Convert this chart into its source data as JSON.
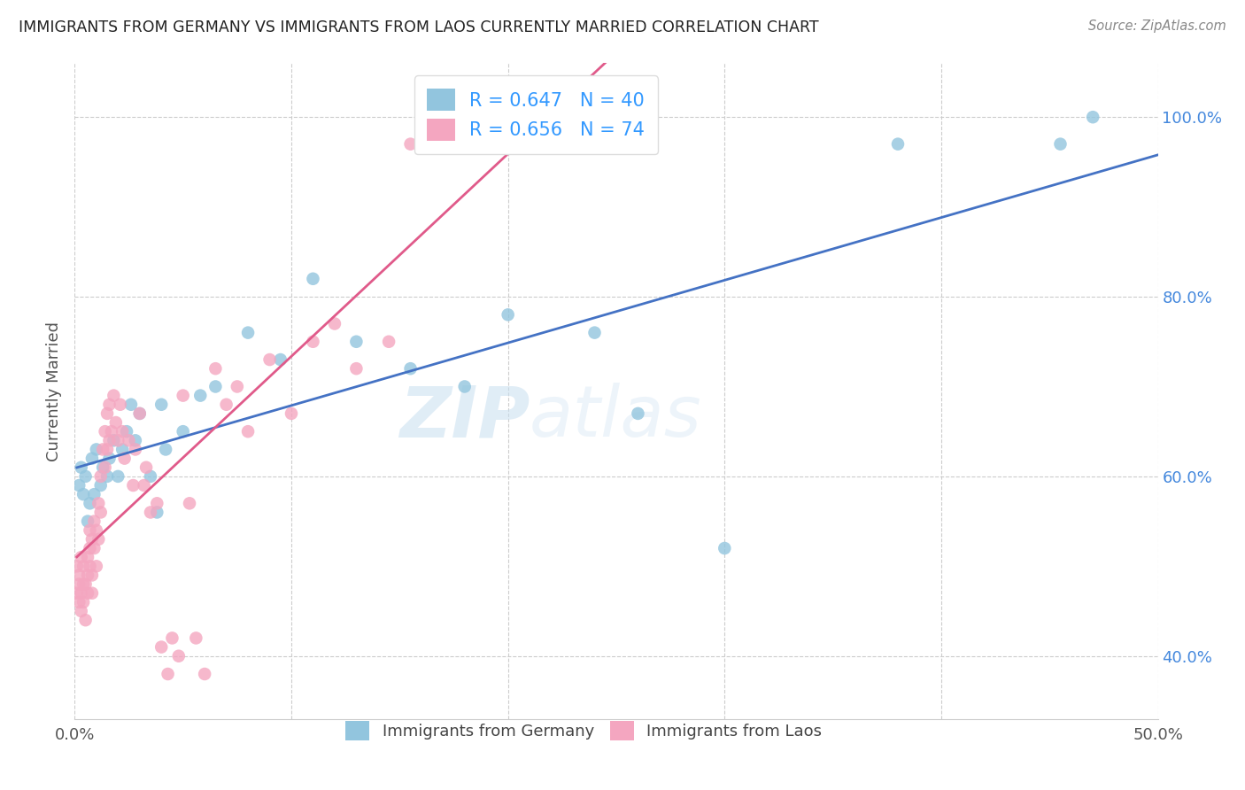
{
  "title": "IMMIGRANTS FROM GERMANY VS IMMIGRANTS FROM LAOS CURRENTLY MARRIED CORRELATION CHART",
  "source": "Source: ZipAtlas.com",
  "ylabel": "Currently Married",
  "xlim": [
    0.0,
    0.5
  ],
  "ylim": [
    0.33,
    1.06
  ],
  "xtick_positions": [
    0.0,
    0.1,
    0.2,
    0.3,
    0.4,
    0.5
  ],
  "xticklabels": [
    "0.0%",
    "",
    "",
    "",
    "",
    "50.0%"
  ],
  "ytick_positions": [
    0.4,
    0.6,
    0.8,
    1.0
  ],
  "ytick_labels": [
    "40.0%",
    "60.0%",
    "80.0%",
    "100.0%"
  ],
  "germany_R": 0.647,
  "germany_N": 40,
  "laos_R": 0.656,
  "laos_N": 74,
  "germany_color": "#92c5de",
  "laos_color": "#f4a6c0",
  "germany_line_color": "#4472c4",
  "laos_line_color": "#e05a8a",
  "watermark_zip": "ZIP",
  "watermark_atlas": "atlas",
  "germany_x": [
    0.002,
    0.003,
    0.004,
    0.005,
    0.006,
    0.007,
    0.008,
    0.009,
    0.01,
    0.012,
    0.013,
    0.015,
    0.016,
    0.018,
    0.02,
    0.022,
    0.024,
    0.026,
    0.028,
    0.03,
    0.035,
    0.038,
    0.04,
    0.042,
    0.05,
    0.058,
    0.065,
    0.08,
    0.095,
    0.11,
    0.13,
    0.155,
    0.18,
    0.2,
    0.24,
    0.26,
    0.3,
    0.38,
    0.455,
    0.47
  ],
  "germany_y": [
    0.59,
    0.61,
    0.58,
    0.6,
    0.55,
    0.57,
    0.62,
    0.58,
    0.63,
    0.59,
    0.61,
    0.6,
    0.62,
    0.64,
    0.6,
    0.63,
    0.65,
    0.68,
    0.64,
    0.67,
    0.6,
    0.56,
    0.68,
    0.63,
    0.65,
    0.69,
    0.7,
    0.76,
    0.73,
    0.82,
    0.75,
    0.72,
    0.7,
    0.78,
    0.76,
    0.67,
    0.52,
    0.97,
    0.97,
    1.0
  ],
  "laos_x": [
    0.001,
    0.001,
    0.002,
    0.002,
    0.002,
    0.003,
    0.003,
    0.003,
    0.004,
    0.004,
    0.004,
    0.005,
    0.005,
    0.006,
    0.006,
    0.006,
    0.007,
    0.007,
    0.007,
    0.008,
    0.008,
    0.008,
    0.009,
    0.009,
    0.01,
    0.01,
    0.011,
    0.011,
    0.012,
    0.012,
    0.013,
    0.014,
    0.014,
    0.015,
    0.015,
    0.016,
    0.016,
    0.017,
    0.018,
    0.019,
    0.02,
    0.021,
    0.022,
    0.023,
    0.025,
    0.027,
    0.028,
    0.03,
    0.032,
    0.033,
    0.035,
    0.038,
    0.04,
    0.043,
    0.045,
    0.048,
    0.05,
    0.053,
    0.056,
    0.06,
    0.065,
    0.07,
    0.075,
    0.08,
    0.09,
    0.1,
    0.11,
    0.12,
    0.13,
    0.145,
    0.155,
    0.165,
    0.175,
    0.185
  ],
  "laos_y": [
    0.5,
    0.47,
    0.49,
    0.46,
    0.48,
    0.45,
    0.47,
    0.51,
    0.48,
    0.5,
    0.46,
    0.44,
    0.48,
    0.49,
    0.47,
    0.51,
    0.52,
    0.5,
    0.54,
    0.49,
    0.53,
    0.47,
    0.55,
    0.52,
    0.5,
    0.54,
    0.57,
    0.53,
    0.6,
    0.56,
    0.63,
    0.61,
    0.65,
    0.63,
    0.67,
    0.64,
    0.68,
    0.65,
    0.69,
    0.66,
    0.64,
    0.68,
    0.65,
    0.62,
    0.64,
    0.59,
    0.63,
    0.67,
    0.59,
    0.61,
    0.56,
    0.57,
    0.41,
    0.38,
    0.42,
    0.4,
    0.69,
    0.57,
    0.42,
    0.38,
    0.72,
    0.68,
    0.7,
    0.65,
    0.73,
    0.67,
    0.75,
    0.77,
    0.72,
    0.75,
    0.97,
    0.98,
    0.97,
    1.0
  ],
  "legend_labels": [
    "Immigrants from Germany",
    "Immigrants from Laos"
  ]
}
